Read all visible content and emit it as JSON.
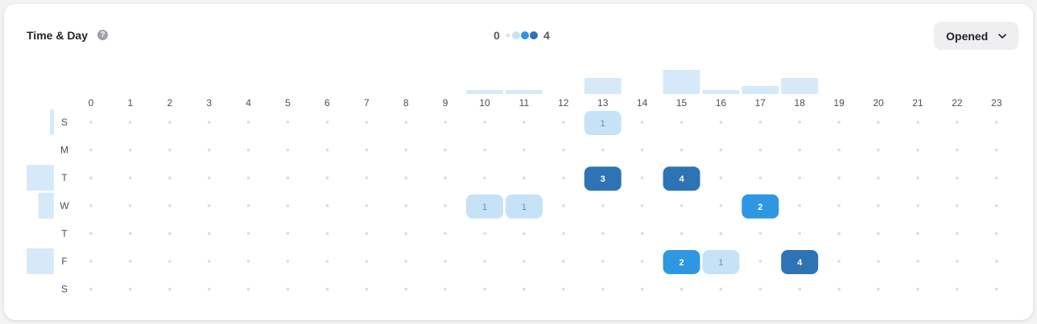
{
  "header": {
    "title": "Time & Day",
    "help_icon": "question-circle-icon",
    "legend": {
      "min": "0",
      "max": "4"
    },
    "dropdown": {
      "label": "Opened",
      "icon": "chevron-down-icon"
    }
  },
  "colors": {
    "level1": "#c6e2f7",
    "level2": "#2f97e2",
    "level3": "#2e73b4",
    "level4": "#2e73b4",
    "bar": "#d6e9f9",
    "empty_dot": "#dcdcdc",
    "tick": "#4a4f55"
  },
  "chart_data": {
    "type": "heatmap",
    "x": [
      "0",
      "1",
      "2",
      "3",
      "4",
      "5",
      "6",
      "7",
      "8",
      "9",
      "10",
      "11",
      "12",
      "13",
      "14",
      "15",
      "16",
      "17",
      "18",
      "19",
      "20",
      "21",
      "22",
      "23"
    ],
    "y": [
      "S",
      "M",
      "T",
      "W",
      "T",
      "F",
      "S"
    ],
    "value_range": [
      0,
      4
    ],
    "cells": [
      {
        "day": 0,
        "hour": 13,
        "value": 1
      },
      {
        "day": 2,
        "hour": 13,
        "value": 3
      },
      {
        "day": 2,
        "hour": 15,
        "value": 4
      },
      {
        "day": 3,
        "hour": 10,
        "value": 1
      },
      {
        "day": 3,
        "hour": 11,
        "value": 1
      },
      {
        "day": 3,
        "hour": 17,
        "value": 2
      },
      {
        "day": 5,
        "hour": 15,
        "value": 2
      },
      {
        "day": 5,
        "hour": 16,
        "value": 1
      },
      {
        "day": 5,
        "hour": 18,
        "value": 4
      }
    ],
    "hour_totals": [
      0,
      0,
      0,
      0,
      0,
      0,
      0,
      0,
      0,
      0,
      1,
      1,
      0,
      4,
      0,
      6,
      1,
      2,
      4,
      0,
      0,
      0,
      0,
      0
    ],
    "day_totals": [
      1,
      0,
      7,
      4,
      0,
      7,
      0
    ]
  }
}
